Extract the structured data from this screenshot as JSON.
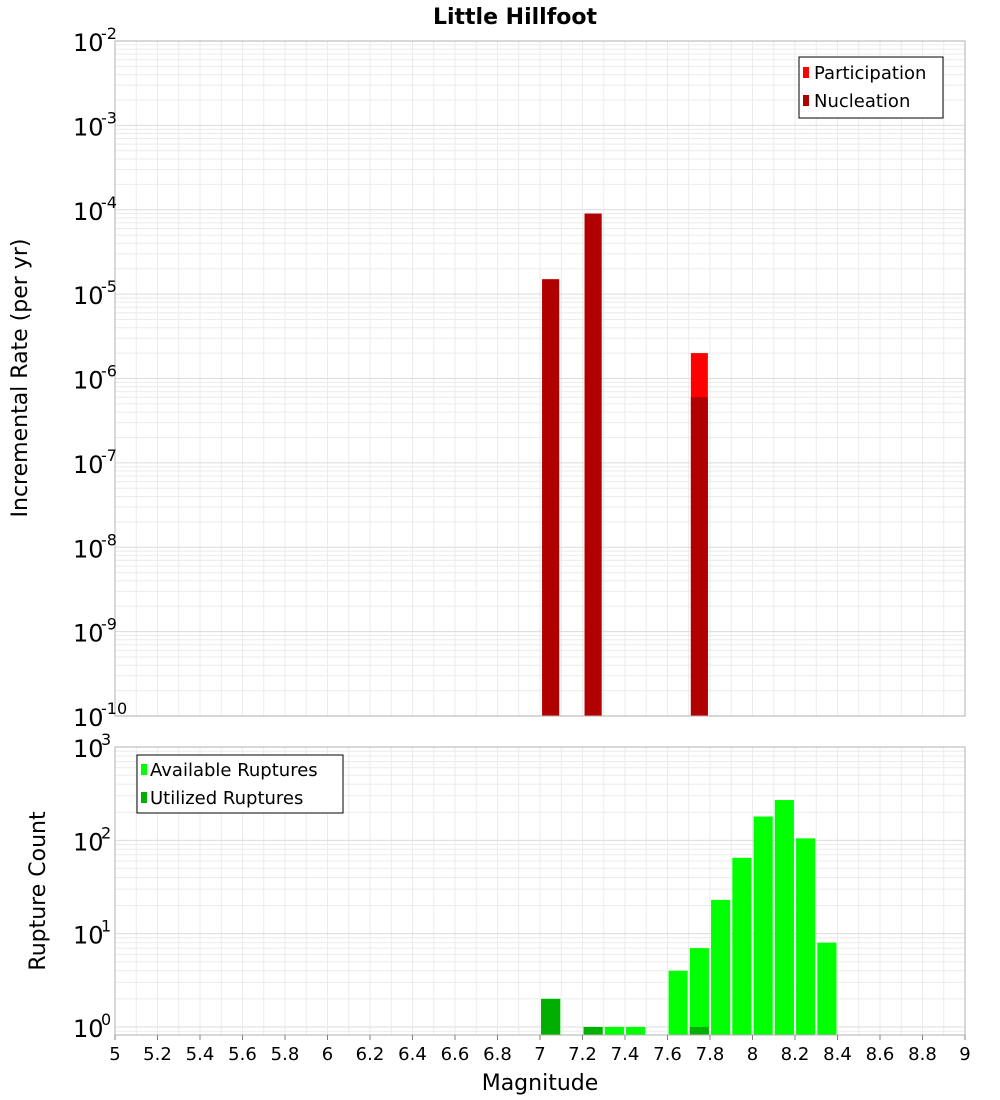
{
  "title": "Little Hillfoot",
  "colors": {
    "participation": "#ff0000",
    "nucleation": "#b00000",
    "available": "#00ff00",
    "utilized": "#00b000",
    "gridline": "#ebebeb",
    "frame": "#b0b0b0"
  },
  "chart_data": [
    {
      "type": "bar",
      "id": "rate",
      "ylabel": "Incremental Rate (per yr)",
      "yscale": "log",
      "ylim": [
        1e-10,
        0.01
      ],
      "xlim": [
        5,
        9
      ],
      "y_tick_base": "10",
      "y_tick_exponents": [
        "-10",
        "-9",
        "-8",
        "-7",
        "-6",
        "-5",
        "-4",
        "-3",
        "-2"
      ],
      "legend": {
        "position": "top-right",
        "entries": [
          "Participation",
          "Nucleation"
        ]
      },
      "bar_width": 0.08,
      "series": [
        {
          "name": "Participation",
          "color": "#ff0000",
          "x": [
            7.05,
            7.25,
            7.75
          ],
          "values": [
            1.5e-05,
            9e-05,
            2e-06
          ]
        },
        {
          "name": "Nucleation",
          "color": "#b00000",
          "x": [
            7.05,
            7.25,
            7.75
          ],
          "values": [
            1.5e-05,
            9e-05,
            6e-07
          ]
        }
      ]
    },
    {
      "type": "bar",
      "id": "count",
      "ylabel": "Rupture Count",
      "yscale": "log",
      "ylim": [
        0.82,
        1000
      ],
      "xlim": [
        5,
        9
      ],
      "y_tick_base": "10",
      "y_tick_exponents": [
        "0",
        "1",
        "2",
        "3"
      ],
      "legend": {
        "position": "top-left",
        "entries": [
          "Available Ruptures",
          "Utilized Ruptures"
        ]
      },
      "bar_width": 0.09,
      "series": [
        {
          "name": "Available Ruptures",
          "color": "#00ff00",
          "x": [
            7.05,
            7.25,
            7.35,
            7.45,
            7.65,
            7.75,
            7.85,
            7.95,
            8.05,
            8.15,
            8.25,
            8.35
          ],
          "values": [
            2,
            1,
            1,
            1,
            4,
            7,
            23,
            65,
            180,
            270,
            105,
            8
          ]
        },
        {
          "name": "Utilized Ruptures",
          "color": "#00b000",
          "x": [
            7.05,
            7.25,
            7.75
          ],
          "values": [
            2,
            1,
            1
          ]
        }
      ]
    }
  ],
  "xaxis": {
    "label": "Magnitude",
    "ticks": [
      "5",
      "5.2",
      "5.4",
      "5.6",
      "5.8",
      "6",
      "6.2",
      "6.4",
      "6.6",
      "6.8",
      "7",
      "7.2",
      "7.4",
      "7.6",
      "7.8",
      "8",
      "8.2",
      "8.4",
      "8.6",
      "8.8",
      "9"
    ]
  }
}
